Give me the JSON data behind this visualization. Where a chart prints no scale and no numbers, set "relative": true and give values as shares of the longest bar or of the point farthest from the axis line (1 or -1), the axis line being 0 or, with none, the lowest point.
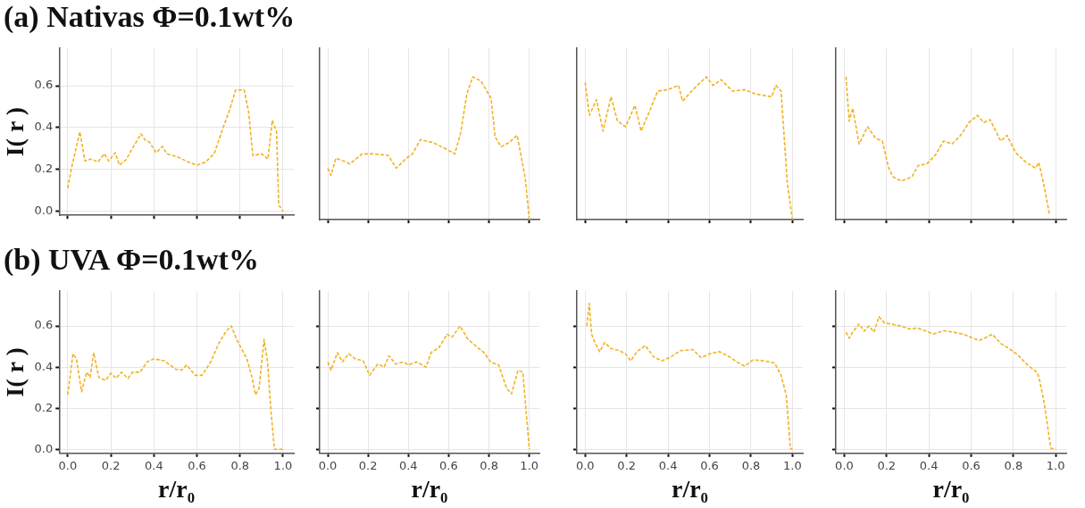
{
  "chart_data": [
    {
      "type": "line",
      "title": "(a) Nativas Φ=0.1wt%",
      "ylabel": "I( r )",
      "xlim": [
        -0.04,
        1.05
      ],
      "ylim": [
        -0.02,
        0.78
      ],
      "xticks": [
        {
          "value": 0,
          "label": null
        },
        {
          "value": 0.2,
          "label": null
        },
        {
          "value": 0.4,
          "label": null
        },
        {
          "value": 0.6,
          "label": null
        },
        {
          "value": 0.8,
          "label": null
        },
        {
          "value": 1,
          "label": null
        }
      ],
      "yticks": [
        {
          "value": 0,
          "label": "0.0"
        },
        {
          "value": 0.2,
          "label": "0.2"
        },
        {
          "value": 0.4,
          "label": "0.4"
        },
        {
          "value": 0.6,
          "label": "0.6"
        }
      ],
      "tick_labels": "y",
      "grid": true,
      "line_style": "dashed",
      "series": [
        {
          "color": "#f0b323",
          "x": [
            0,
            0.016,
            0.056,
            0.08,
            0.11,
            0.14,
            0.17,
            0.19,
            0.22,
            0.24,
            0.27,
            0.3,
            0.34,
            0.36,
            0.38,
            0.41,
            0.44,
            0.46,
            0.51,
            0.56,
            0.6,
            0.64,
            0.68,
            0.72,
            0.75,
            0.78,
            0.82,
            0.84,
            0.86,
            0.9,
            0.93,
            0.95,
            0.97,
            0.98,
            1.0
          ],
          "values": [
            0.11,
            0.2,
            0.38,
            0.24,
            0.25,
            0.235,
            0.275,
            0.24,
            0.28,
            0.22,
            0.245,
            0.3,
            0.37,
            0.34,
            0.33,
            0.28,
            0.31,
            0.275,
            0.26,
            0.235,
            0.22,
            0.235,
            0.275,
            0.395,
            0.48,
            0.58,
            0.58,
            0.475,
            0.265,
            0.275,
            0.25,
            0.435,
            0.38,
            0.03,
            0.0
          ]
        }
      ]
    },
    {
      "type": "line",
      "relative": true,
      "xlim": [
        -0.04,
        1.05
      ],
      "xticks": [
        {
          "value": 0,
          "label": null
        },
        {
          "value": 0.2,
          "label": null
        },
        {
          "value": 0.4,
          "label": null
        },
        {
          "value": 0.6,
          "label": null
        },
        {
          "value": 0.8,
          "label": null
        },
        {
          "value": 1,
          "label": null
        }
      ],
      "tick_labels": false,
      "grid": true,
      "line_style": "dashed",
      "series": [
        {
          "color": "#f0b323",
          "x": [
            0,
            0.016,
            0.04,
            0.08,
            0.11,
            0.17,
            0.23,
            0.3,
            0.34,
            0.39,
            0.42,
            0.46,
            0.52,
            0.58,
            0.63,
            0.66,
            0.69,
            0.72,
            0.76,
            0.81,
            0.83,
            0.86,
            0.9,
            0.94,
            0.98,
            1.0
          ],
          "values": [
            0.36,
            0.31,
            0.43,
            0.41,
            0.39,
            0.46,
            0.46,
            0.45,
            0.36,
            0.43,
            0.46,
            0.56,
            0.54,
            0.5,
            0.46,
            0.61,
            0.88,
            1,
            0.97,
            0.85,
            0.58,
            0.51,
            0.54,
            0.59,
            0.29,
            0
          ]
        }
      ]
    },
    {
      "type": "line",
      "relative": true,
      "xlim": [
        -0.04,
        1.05
      ],
      "xticks": [
        {
          "value": 0,
          "label": null
        },
        {
          "value": 0.2,
          "label": null
        },
        {
          "value": 0.4,
          "label": null
        },
        {
          "value": 0.6,
          "label": null
        },
        {
          "value": 0.8,
          "label": null
        },
        {
          "value": 1,
          "label": null
        }
      ],
      "tick_labels": false,
      "grid": true,
      "line_style": "dashed",
      "series": [
        {
          "color": "#f0b323",
          "x": [
            0,
            0.02,
            0.055,
            0.086,
            0.125,
            0.156,
            0.195,
            0.24,
            0.27,
            0.305,
            0.35,
            0.4,
            0.45,
            0.47,
            0.52,
            0.585,
            0.617,
            0.656,
            0.71,
            0.77,
            0.82,
            0.9,
            0.92,
            0.945,
            0.975,
            1.0
          ],
          "values": [
            0.96,
            0.73,
            0.84,
            0.62,
            0.86,
            0.69,
            0.65,
            0.8,
            0.62,
            0.74,
            0.9,
            0.91,
            0.94,
            0.83,
            0.91,
            1,
            0.94,
            0.98,
            0.9,
            0.91,
            0.88,
            0.86,
            0.94,
            0.9,
            0.26,
            0
          ]
        }
      ]
    },
    {
      "type": "line",
      "relative": true,
      "xlim": [
        -0.04,
        1.05
      ],
      "xticks": [
        {
          "value": 0,
          "label": null
        },
        {
          "value": 0.2,
          "label": null
        },
        {
          "value": 0.4,
          "label": null
        },
        {
          "value": 0.6,
          "label": null
        },
        {
          "value": 0.8,
          "label": null
        },
        {
          "value": 1,
          "label": null
        }
      ],
      "tick_labels": false,
      "grid": true,
      "line_style": "dashed",
      "series": [
        {
          "color": "#f0b323",
          "x": [
            0.008,
            0.023,
            0.04,
            0.07,
            0.11,
            0.148,
            0.18,
            0.21,
            0.23,
            0.27,
            0.32,
            0.35,
            0.39,
            0.43,
            0.47,
            0.51,
            0.55,
            0.59,
            0.63,
            0.66,
            0.69,
            0.74,
            0.77,
            0.81,
            0.86,
            0.905,
            0.92,
            0.945,
            0.97
          ],
          "values": [
            1,
            0.69,
            0.78,
            0.53,
            0.65,
            0.57,
            0.55,
            0.36,
            0.3,
            0.27,
            0.3,
            0.38,
            0.39,
            0.45,
            0.55,
            0.53,
            0.59,
            0.68,
            0.73,
            0.68,
            0.7,
            0.55,
            0.59,
            0.47,
            0.4,
            0.36,
            0.4,
            0.24,
            0.04
          ]
        }
      ]
    },
    {
      "type": "line",
      "title": "(b) UVA Φ=0.1wt%",
      "ylabel": "I( r )",
      "xlabel": "r/r₀",
      "xlim": [
        -0.04,
        1.05
      ],
      "ylim": [
        -0.02,
        0.77
      ],
      "xticks": [
        {
          "value": 0,
          "label": "0.0"
        },
        {
          "value": 0.2,
          "label": "0.2"
        },
        {
          "value": 0.4,
          "label": "0.4"
        },
        {
          "value": 0.6,
          "label": "0.6"
        },
        {
          "value": 0.8,
          "label": "0.8"
        },
        {
          "value": 1,
          "label": "1.0"
        }
      ],
      "yticks": [
        {
          "value": 0,
          "label": "0.0"
        },
        {
          "value": 0.2,
          "label": "0.2"
        },
        {
          "value": 0.4,
          "label": "0.4"
        },
        {
          "value": 0.6,
          "label": "0.6"
        }
      ],
      "grid": true,
      "line_style": "dashed",
      "series": [
        {
          "color": "#f0b323",
          "x": [
            0,
            0.024,
            0.04,
            0.064,
            0.088,
            0.104,
            0.12,
            0.144,
            0.176,
            0.2,
            0.224,
            0.248,
            0.28,
            0.3,
            0.336,
            0.368,
            0.4,
            0.45,
            0.5,
            0.528,
            0.552,
            0.592,
            0.624,
            0.664,
            0.704,
            0.736,
            0.76,
            0.784,
            0.832,
            0.856,
            0.872,
            0.888,
            0.912,
            0.928,
            0.944,
            0.96,
            1.0
          ],
          "values": [
            0.265,
            0.465,
            0.44,
            0.28,
            0.375,
            0.35,
            0.47,
            0.35,
            0.335,
            0.37,
            0.345,
            0.375,
            0.345,
            0.375,
            0.375,
            0.425,
            0.44,
            0.43,
            0.39,
            0.385,
            0.41,
            0.36,
            0.36,
            0.425,
            0.52,
            0.575,
            0.6,
            0.535,
            0.44,
            0.35,
            0.265,
            0.295,
            0.535,
            0.425,
            0.185,
            0.0,
            0.0
          ]
        }
      ]
    },
    {
      "type": "line",
      "xlabel": "r/r₀",
      "xlim": [
        -0.04,
        1.05
      ],
      "ylim": [
        -0.02,
        0.77
      ],
      "xticks": [
        {
          "value": 0,
          "label": "0.0"
        },
        {
          "value": 0.2,
          "label": "0.2"
        },
        {
          "value": 0.4,
          "label": "0.4"
        },
        {
          "value": 0.6,
          "label": "0.6"
        },
        {
          "value": 0.8,
          "label": "0.8"
        },
        {
          "value": 1,
          "label": "1.0"
        }
      ],
      "yticks": [
        0,
        0.2,
        0.4,
        0.6
      ],
      "tick_labels": "x",
      "grid": true,
      "line_style": "dashed",
      "series": [
        {
          "color": "#f0b323",
          "x": [
            0,
            0.016,
            0.048,
            0.072,
            0.104,
            0.136,
            0.176,
            0.208,
            0.248,
            0.28,
            0.304,
            0.336,
            0.376,
            0.4,
            0.44,
            0.488,
            0.512,
            0.552,
            0.592,
            0.616,
            0.656,
            0.696,
            0.744,
            0.776,
            0.808,
            0.848,
            0.888,
            0.912,
            0.944,
            0.968,
            1.0
          ],
          "values": [
            0.425,
            0.385,
            0.47,
            0.425,
            0.465,
            0.44,
            0.43,
            0.36,
            0.415,
            0.4,
            0.455,
            0.415,
            0.425,
            0.41,
            0.425,
            0.4,
            0.47,
            0.495,
            0.56,
            0.545,
            0.6,
            0.535,
            0.495,
            0.47,
            0.425,
            0.41,
            0.295,
            0.27,
            0.385,
            0.375,
            0.0
          ]
        }
      ]
    },
    {
      "type": "line",
      "xlabel": "r/r₀",
      "xlim": [
        -0.04,
        1.05
      ],
      "ylim": [
        -0.02,
        0.77
      ],
      "xticks": [
        {
          "value": 0,
          "label": "0.0"
        },
        {
          "value": 0.2,
          "label": "0.2"
        },
        {
          "value": 0.4,
          "label": "0.4"
        },
        {
          "value": 0.6,
          "label": "0.6"
        },
        {
          "value": 0.8,
          "label": "0.8"
        },
        {
          "value": 1,
          "label": "1.0"
        }
      ],
      "yticks": [
        0,
        0.2,
        0.4,
        0.6
      ],
      "tick_labels": "x",
      "grid": true,
      "line_style": "dashed",
      "series": [
        {
          "color": "#f0b323",
          "x": [
            0.008,
            0.02,
            0.031,
            0.047,
            0.07,
            0.094,
            0.125,
            0.164,
            0.195,
            0.22,
            0.25,
            0.29,
            0.33,
            0.37,
            0.414,
            0.46,
            0.52,
            0.56,
            0.6,
            0.648,
            0.695,
            0.74,
            0.77,
            0.81,
            0.865,
            0.914,
            0.945,
            0.97,
            0.99,
            1.0
          ],
          "values": [
            0.6,
            0.71,
            0.56,
            0.52,
            0.475,
            0.52,
            0.49,
            0.48,
            0.465,
            0.43,
            0.475,
            0.505,
            0.45,
            0.43,
            0.45,
            0.48,
            0.485,
            0.445,
            0.465,
            0.475,
            0.45,
            0.42,
            0.405,
            0.435,
            0.43,
            0.42,
            0.36,
            0.265,
            0.005,
            0.0
          ]
        }
      ]
    },
    {
      "type": "line",
      "xlabel": "r/r₀",
      "xlim": [
        -0.04,
        1.05
      ],
      "ylim": [
        -0.02,
        0.77
      ],
      "xticks": [
        {
          "value": 0,
          "label": "0.0"
        },
        {
          "value": 0.2,
          "label": "0.2"
        },
        {
          "value": 0.4,
          "label": "0.4"
        },
        {
          "value": 0.6,
          "label": "0.6"
        },
        {
          "value": 0.8,
          "label": "0.8"
        },
        {
          "value": 1,
          "label": "1.0"
        }
      ],
      "yticks": [
        0,
        0.2,
        0.4,
        0.6
      ],
      "tick_labels": "x",
      "grid": true,
      "line_style": "dashed",
      "series": [
        {
          "color": "#f0b323",
          "x": [
            0.008,
            0.023,
            0.04,
            0.07,
            0.094,
            0.117,
            0.14,
            0.164,
            0.19,
            0.22,
            0.266,
            0.31,
            0.344,
            0.383,
            0.42,
            0.47,
            0.516,
            0.563,
            0.61,
            0.64,
            0.672,
            0.7,
            0.74,
            0.78,
            0.82,
            0.867,
            0.906,
            0.92,
            0.945,
            0.977,
            1.0
          ],
          "values": [
            0.57,
            0.54,
            0.57,
            0.61,
            0.575,
            0.6,
            0.57,
            0.645,
            0.615,
            0.61,
            0.6,
            0.585,
            0.59,
            0.577,
            0.56,
            0.577,
            0.57,
            0.56,
            0.54,
            0.53,
            0.545,
            0.56,
            0.515,
            0.49,
            0.46,
            0.41,
            0.38,
            0.355,
            0.23,
            0.005,
            0.0
          ]
        }
      ]
    }
  ]
}
